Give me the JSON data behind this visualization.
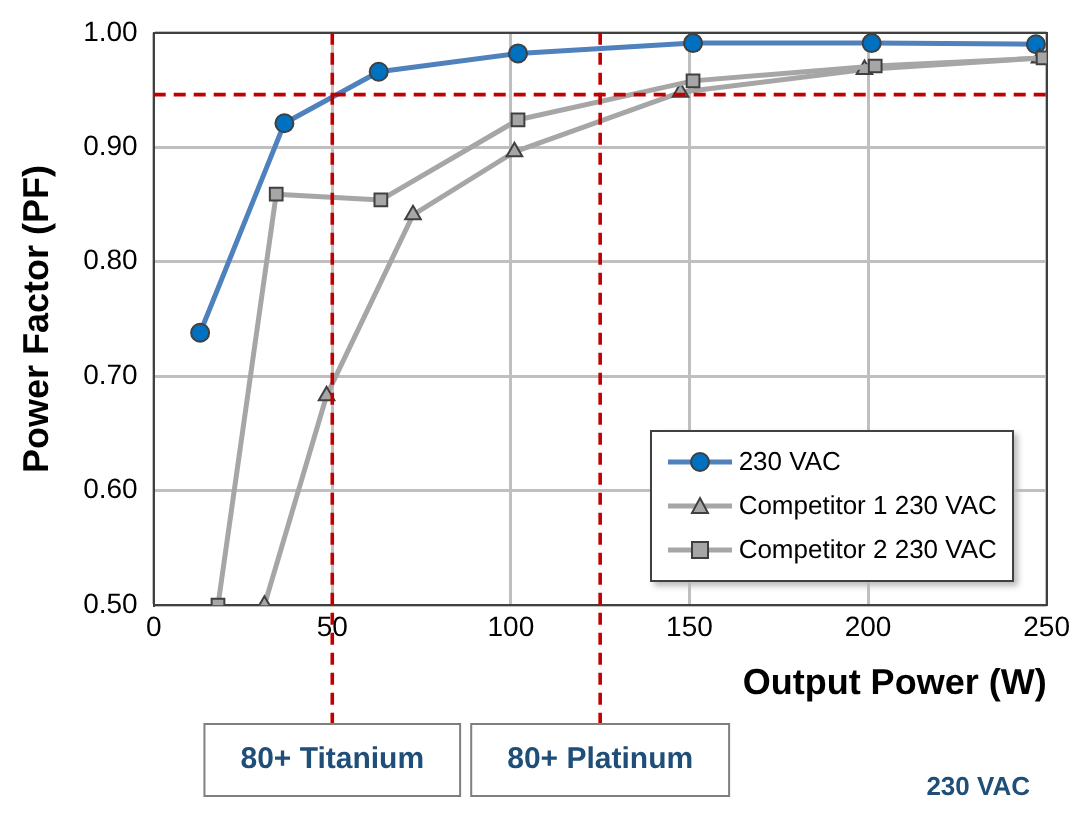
{
  "chart_data": {
    "type": "line",
    "xlabel": "Output Power (W)",
    "ylabel": "Power Factor (PF)",
    "xlim": [
      0,
      250
    ],
    "xticks": [
      0,
      50,
      100,
      150,
      200,
      250
    ],
    "ylim": [
      0.5,
      1.0
    ],
    "yticks": [
      {
        "value": 0.5,
        "label": "0.50"
      },
      {
        "value": 0.6,
        "label": "0.60"
      },
      {
        "value": 0.7,
        "label": "0.70"
      },
      {
        "value": 0.8,
        "label": "0.80"
      },
      {
        "value": 0.9,
        "label": "0.90"
      },
      {
        "value": 1.0,
        "label": "1.00"
      }
    ],
    "grid": true,
    "legend": "bottom right",
    "line_style": "solid",
    "series": [
      {
        "name": "230 VAC",
        "color": "#4f81bd",
        "marker": "circle",
        "x": [
          13,
          36.6,
          63,
          102,
          151,
          201,
          247
        ],
        "values": [
          0.738,
          0.921,
          0.966,
          0.982,
          0.991,
          0.991,
          0.99
        ]
      },
      {
        "name": "Competitor 1 230 VAC",
        "color": "#a6a6a6",
        "marker": "triangle",
        "x": [
          31,
          48.4,
          72.6,
          101,
          147.5,
          199,
          248
        ],
        "values": [
          0.5,
          0.683,
          0.841,
          0.896,
          0.948,
          0.968,
          0.978
        ]
      },
      {
        "name": "Competitor 2 230 VAC",
        "color": "#a6a6a6",
        "marker": "square",
        "x": [
          18,
          34.3,
          63.6,
          102,
          151,
          202,
          249
        ],
        "values": [
          0.5,
          0.859,
          0.854,
          0.924,
          0.958,
          0.971,
          0.978
        ]
      }
    ],
    "ref_lines": [
      {
        "axis": "y",
        "value": 0.946,
        "color": "#c00000",
        "line_style": "dashed"
      },
      {
        "axis": "x",
        "value": 50,
        "label": "80+ Titanium",
        "color": "#c00000",
        "line_style": "dashed"
      },
      {
        "axis": "x",
        "value": 125,
        "label": "80+ Platinum",
        "color": "#c00000",
        "line_style": "dashed"
      }
    ],
    "annotations": [
      "230 VAC"
    ]
  }
}
